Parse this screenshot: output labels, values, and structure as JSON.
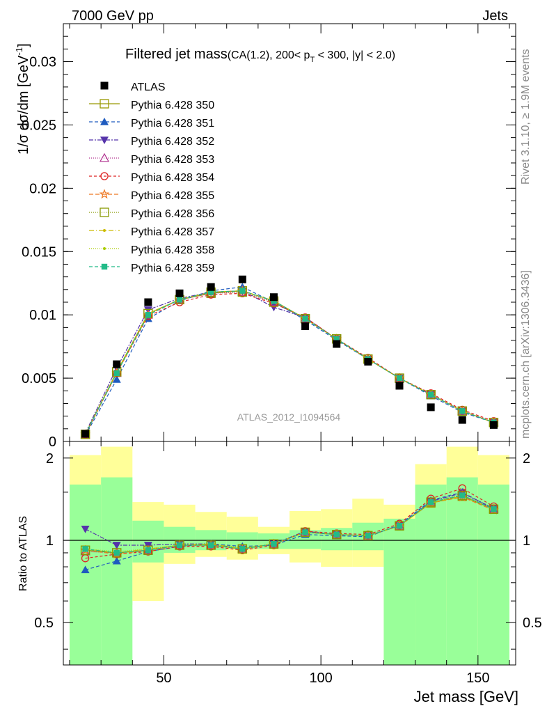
{
  "header": {
    "left": "7000 GeV pp",
    "right": "Jets"
  },
  "side_labels": {
    "rivet": "Rivet 3.1.10, ≥ 1.9M events",
    "mcplots": "mcplots.cern.ch [arXiv:1306.3436]"
  },
  "colors": {
    "ratio_band_inner": "#99ff99",
    "ratio_band_outer": "#ffff99"
  },
  "chart_data": [
    {
      "type": "line",
      "panel": "main",
      "title_main": "Filtered jet mass",
      "title_sub": "(CA(1.2), 200< p",
      "title_sub_sub": "T",
      "title_sub_tail": " < 300, |y| < 2.0)",
      "ylabel": "1/σ dσ/dm [GeV",
      "ylabel_sup": "-1",
      "ylabel_tail": "]",
      "watermark": "ATLAS_2012_I1094564",
      "xlim": [
        18,
        162
      ],
      "ylim": [
        0,
        0.033
      ],
      "yticks": [
        0,
        0.005,
        0.01,
        0.015,
        0.02,
        0.025,
        0.03
      ],
      "ytick_labels": [
        "0",
        "0.005",
        "0.01",
        "0.015",
        "0.02",
        "0.025",
        "0.03"
      ],
      "x": [
        25,
        35,
        45,
        55,
        65,
        75,
        85,
        95,
        105,
        115,
        125,
        135,
        145,
        155
      ],
      "data": {
        "name": "ATLAS",
        "values": [
          0.0006,
          0.0061,
          0.011,
          0.0117,
          0.0122,
          0.0128,
          0.0114,
          0.0091,
          0.0077,
          0.0063,
          0.0044,
          0.0027,
          0.0017,
          0.0013
        ]
      },
      "series": [
        {
          "name": "Pythia 6.428 350",
          "color": "#999900",
          "dash": "",
          "marker": "square-open",
          "values": [
            0.00057,
            0.0055,
            0.0101,
            0.0112,
            0.0117,
            0.0119,
            0.0111,
            0.0097,
            0.0081,
            0.0065,
            0.005,
            0.0037,
            0.0024,
            0.0015
          ]
        },
        {
          "name": "Pythia 6.428 351",
          "color": "#1f5bbf",
          "dash": "5,3",
          "marker": "triangle-up",
          "values": [
            0.00047,
            0.0049,
            0.0097,
            0.0111,
            0.0119,
            0.0122,
            0.011,
            0.0096,
            0.008,
            0.0065,
            0.005,
            0.0036,
            0.0023,
            0.0015
          ]
        },
        {
          "name": "Pythia 6.428 352",
          "color": "#5533aa",
          "dash": "6,2,2,2",
          "marker": "triangle-down",
          "values": [
            0.00066,
            0.0058,
            0.0104,
            0.0113,
            0.0118,
            0.0119,
            0.0106,
            0.0098,
            0.0081,
            0.0065,
            0.005,
            0.0037,
            0.0024,
            0.0015
          ]
        },
        {
          "name": "Pythia 6.428 353",
          "color": "#b0308f",
          "dash": "1,2",
          "marker": "triangle-open",
          "values": [
            0.00055,
            0.0054,
            0.01,
            0.0112,
            0.0117,
            0.0118,
            0.011,
            0.0097,
            0.0081,
            0.0065,
            0.005,
            0.0037,
            0.0024,
            0.0015
          ]
        },
        {
          "name": "Pythia 6.428 354",
          "color": "#dd2222",
          "dash": "4,3",
          "marker": "circle-open",
          "values": [
            0.00052,
            0.0054,
            0.0099,
            0.011,
            0.0116,
            0.0117,
            0.0109,
            0.0098,
            0.0081,
            0.0066,
            0.005,
            0.0038,
            0.0025,
            0.0016
          ]
        },
        {
          "name": "Pythia 6.428 355",
          "color": "#ee7722",
          "dash": "6,3",
          "marker": "star",
          "values": [
            0.00055,
            0.0054,
            0.01,
            0.0112,
            0.0118,
            0.0119,
            0.0111,
            0.0097,
            0.0081,
            0.0065,
            0.005,
            0.0037,
            0.0024,
            0.0015
          ]
        },
        {
          "name": "Pythia 6.428 356",
          "color": "#889900",
          "dash": "1,2",
          "marker": "square-open",
          "values": [
            0.00056,
            0.0055,
            0.0101,
            0.0112,
            0.0118,
            0.0118,
            0.011,
            0.0097,
            0.0081,
            0.0065,
            0.005,
            0.0037,
            0.0024,
            0.0015
          ]
        },
        {
          "name": "Pythia 6.428 357",
          "color": "#ccbb00",
          "dash": "7,3,1,3",
          "marker": "dot-small",
          "values": [
            0.00057,
            0.0055,
            0.0101,
            0.0112,
            0.0118,
            0.0119,
            0.0111,
            0.0097,
            0.0081,
            0.0065,
            0.005,
            0.0037,
            0.0024,
            0.0015
          ]
        },
        {
          "name": "Pythia 6.428 358",
          "color": "#aacc00",
          "dash": "1,2",
          "marker": "dot-small",
          "values": [
            0.00057,
            0.0055,
            0.0101,
            0.0112,
            0.0118,
            0.0119,
            0.0111,
            0.0097,
            0.0081,
            0.0065,
            0.005,
            0.0037,
            0.0024,
            0.0015
          ]
        },
        {
          "name": "Pythia 6.428 359",
          "color": "#22bb88",
          "dash": "5,3",
          "marker": "square-filled",
          "values": [
            0.00056,
            0.0054,
            0.01,
            0.0112,
            0.0118,
            0.0119,
            0.0111,
            0.0097,
            0.0081,
            0.0065,
            0.005,
            0.0037,
            0.0024,
            0.0015
          ]
        }
      ]
    },
    {
      "type": "line",
      "panel": "ratio",
      "ylabel": "Ratio to ATLAS",
      "xlabel": "Jet mass [GeV]",
      "xlim": [
        18,
        162
      ],
      "ylim": [
        0.35,
        2.3
      ],
      "xticks": [
        50,
        100,
        150
      ],
      "xtick_labels": [
        "50",
        "100",
        "150"
      ],
      "yticks": [
        0.5,
        1,
        2
      ],
      "ytick_labels": [
        "0.5",
        "1",
        "2"
      ],
      "reference": 1,
      "bins": [
        [
          20,
          30
        ],
        [
          30,
          40
        ],
        [
          40,
          50
        ],
        [
          50,
          60
        ],
        [
          60,
          70
        ],
        [
          70,
          80
        ],
        [
          80,
          90
        ],
        [
          90,
          100
        ],
        [
          100,
          110
        ],
        [
          110,
          120
        ],
        [
          120,
          130
        ],
        [
          130,
          140
        ],
        [
          140,
          150
        ],
        [
          150,
          160
        ]
      ],
      "band_inner": [
        [
          0.35,
          1.6
        ],
        [
          0.35,
          1.7
        ],
        [
          0.83,
          1.18
        ],
        [
          0.9,
          1.12
        ],
        [
          0.92,
          1.09
        ],
        [
          0.93,
          1.07
        ],
        [
          0.93,
          1.06
        ],
        [
          0.93,
          1.09
        ],
        [
          0.92,
          1.11
        ],
        [
          0.92,
          1.16
        ],
        [
          0.35,
          1.2
        ],
        [
          0.35,
          1.6
        ],
        [
          0.35,
          1.7
        ],
        [
          0.35,
          1.6
        ]
      ],
      "band_outer": [
        [
          0.35,
          2.05
        ],
        [
          0.58,
          2.2
        ],
        [
          0.6,
          1.38
        ],
        [
          0.82,
          1.35
        ],
        [
          0.87,
          1.27
        ],
        [
          0.85,
          1.22
        ],
        [
          0.89,
          1.12
        ],
        [
          0.83,
          1.28
        ],
        [
          0.8,
          1.3
        ],
        [
          0.8,
          1.42
        ],
        [
          0.35,
          1.35
        ],
        [
          0.35,
          1.9
        ],
        [
          0.55,
          2.2
        ],
        [
          0.35,
          2.05
        ]
      ],
      "x": [
        25,
        35,
        45,
        55,
        65,
        75,
        85,
        95,
        105,
        115,
        125,
        135,
        145,
        155
      ],
      "series": [
        {
          "name": "Pythia 6.428 350",
          "values": [
            0.92,
            0.9,
            0.92,
            0.96,
            0.96,
            0.93,
            0.97,
            1.07,
            1.05,
            1.04,
            1.13,
            1.37,
            1.45,
            1.3
          ]
        },
        {
          "name": "Pythia 6.428 351",
          "values": [
            0.78,
            0.84,
            0.91,
            0.95,
            0.97,
            0.95,
            0.96,
            1.05,
            1.04,
            1.03,
            1.14,
            1.4,
            1.5,
            1.3
          ]
        },
        {
          "name": "Pythia 6.428 352",
          "values": [
            1.1,
            0.96,
            0.96,
            0.97,
            0.97,
            0.93,
            0.97,
            1.08,
            1.05,
            1.04,
            1.13,
            1.39,
            1.49,
            1.31
          ]
        },
        {
          "name": "Pythia 6.428 353",
          "values": [
            0.91,
            0.9,
            0.92,
            0.96,
            0.96,
            0.93,
            0.97,
            1.07,
            1.05,
            1.04,
            1.13,
            1.38,
            1.47,
            1.3
          ]
        },
        {
          "name": "Pythia 6.428 354",
          "values": [
            0.86,
            0.89,
            0.91,
            0.95,
            0.95,
            0.92,
            0.96,
            1.08,
            1.06,
            1.05,
            1.15,
            1.42,
            1.55,
            1.33
          ]
        },
        {
          "name": "Pythia 6.428 355",
          "values": [
            0.92,
            0.89,
            0.92,
            0.96,
            0.96,
            0.93,
            0.97,
            1.07,
            1.05,
            1.04,
            1.13,
            1.37,
            1.44,
            1.29
          ]
        },
        {
          "name": "Pythia 6.428 356",
          "values": [
            0.92,
            0.9,
            0.92,
            0.96,
            0.96,
            0.93,
            0.97,
            1.07,
            1.05,
            1.04,
            1.13,
            1.38,
            1.46,
            1.3
          ]
        },
        {
          "name": "Pythia 6.428 357",
          "values": [
            0.93,
            0.9,
            0.93,
            0.96,
            0.97,
            0.93,
            0.97,
            1.07,
            1.05,
            1.04,
            1.13,
            1.37,
            1.45,
            1.3
          ]
        },
        {
          "name": "Pythia 6.428 358",
          "values": [
            0.93,
            0.91,
            0.93,
            0.96,
            0.97,
            0.94,
            0.97,
            1.07,
            1.05,
            1.04,
            1.13,
            1.37,
            1.45,
            1.3
          ]
        },
        {
          "name": "Pythia 6.428 359",
          "values": [
            0.93,
            0.9,
            0.92,
            0.96,
            0.96,
            0.93,
            0.97,
            1.07,
            1.05,
            1.04,
            1.13,
            1.38,
            1.46,
            1.3
          ]
        }
      ]
    }
  ]
}
